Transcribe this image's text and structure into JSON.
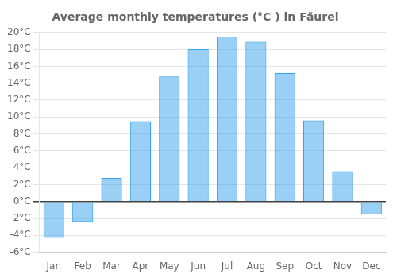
{
  "chart_data": {
    "type": "bar",
    "title": "Average monthly temperatures (°C ) in Făurei",
    "categories": [
      "Jan",
      "Feb",
      "Mar",
      "Apr",
      "May",
      "Jun",
      "Jul",
      "Aug",
      "Sep",
      "Oct",
      "Nov",
      "Dec"
    ],
    "values": [
      -4.3,
      -2.4,
      2.8,
      9.5,
      14.8,
      18.0,
      19.5,
      18.9,
      15.2,
      9.6,
      3.6,
      -1.5
    ],
    "ylim": [
      -6,
      20
    ],
    "yticks": [
      {
        "value": -6,
        "label": "-6°C"
      },
      {
        "value": -4,
        "label": "-4°C"
      },
      {
        "value": -2,
        "label": "-2°C"
      },
      {
        "value": 0,
        "label": "0°C"
      },
      {
        "value": 2,
        "label": "2°C"
      },
      {
        "value": 4,
        "label": "4°C"
      },
      {
        "value": 6,
        "label": "6°C"
      },
      {
        "value": 8,
        "label": "8°C"
      },
      {
        "value": 10,
        "label": "10°C"
      },
      {
        "value": 12,
        "label": "12°C"
      },
      {
        "value": 14,
        "label": "14°C"
      },
      {
        "value": 16,
        "label": "16°C"
      },
      {
        "value": 18,
        "label": "18°C"
      },
      {
        "value": 20,
        "label": "20°C"
      }
    ],
    "grid": true
  }
}
